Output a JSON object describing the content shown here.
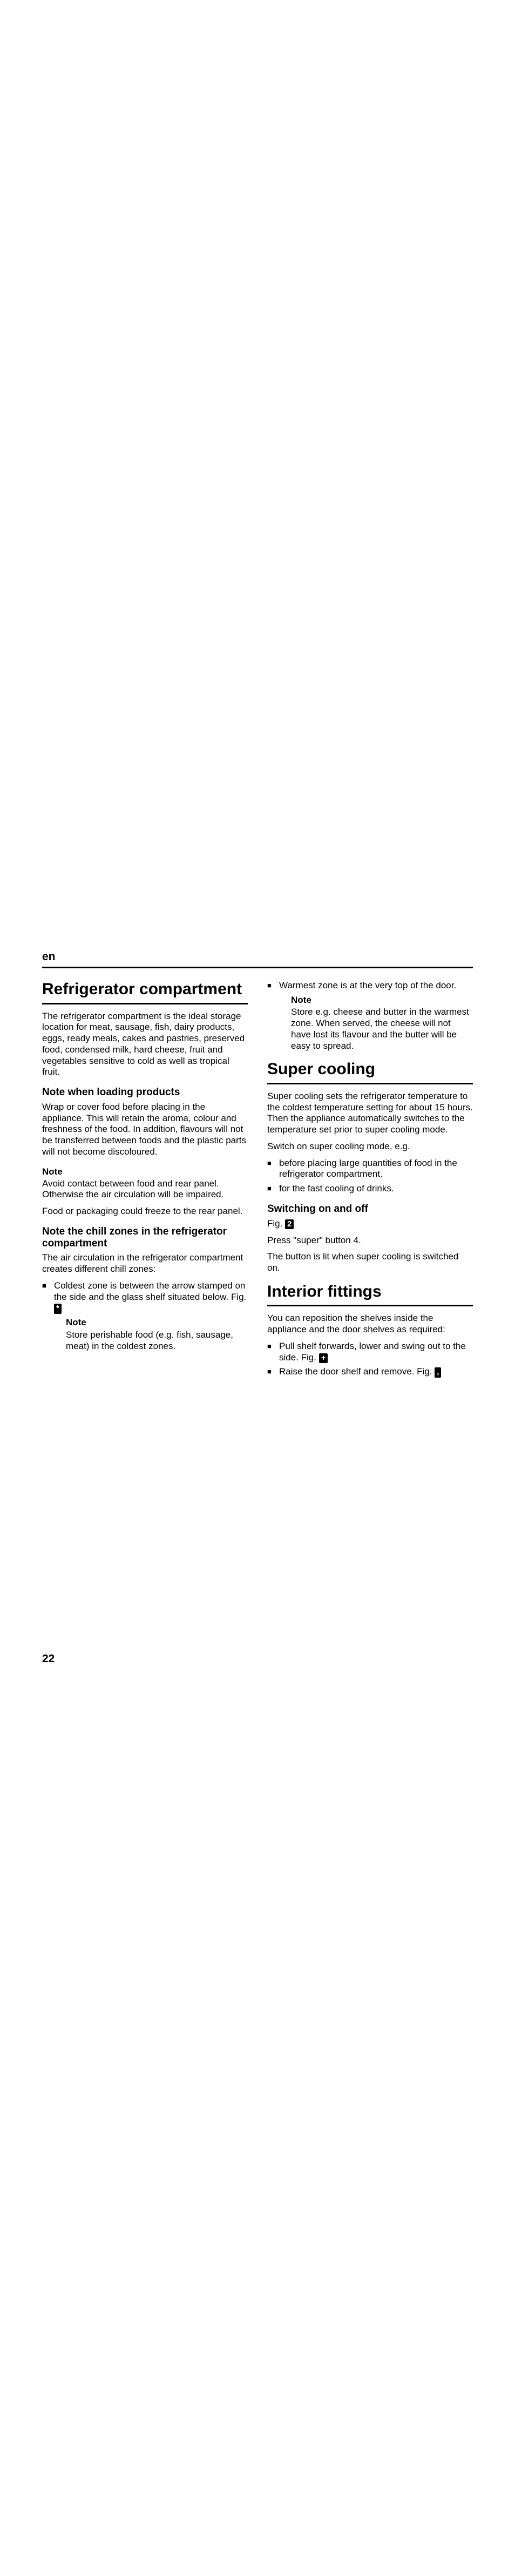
{
  "lang": "en",
  "pageNum": "22",
  "left": {
    "title": "Refrigerator compartment",
    "intro": "The refrigerator compartment is the ideal storage location for meat, sausage, fish, dairy products, eggs, ready meals, cakes and pastries, preserved food, condensed milk, hard cheese, fruit and vegetables sensitive to cold as well as tropical fruit.",
    "h_loading": "Note when loading products",
    "loading_p": "Wrap or cover food before placing in the appliance. This will retain the aroma, colour and freshness of the food. In addition, flavours will not be transferred between foods and the plastic parts will not become discoloured.",
    "note1": "Note",
    "note1_p": "Avoid contact between food and rear panel. Otherwise the air circulation will be impaired.",
    "note1_p2": "Food or packaging could freeze to the rear panel.",
    "h_chill": "Note the chill zones in the refrigerator compartment",
    "chill_p": "The air circulation in the refrigerator compartment creates different chill zones:",
    "chill_b1_a": "Coldest zone is between the arrow stamped on the side and the glass shelf situated below. Fig. ",
    "chill_b1_fig": "*",
    "note2": "Note",
    "note2_p": "Store perishable food (e.g. fish, sausage, meat) in the coldest zones."
  },
  "right": {
    "warm_b_a": "Warmest zone is at the very top of the door.",
    "warm_note": "Note",
    "warm_note_p": "Store e.g. cheese and butter in the warmest zone. When served, the cheese will not have lost its flavour and the butter will be easy to spread.",
    "title_super": "Super cooling",
    "super_p1": "Super cooling sets the refrigerator temperature to the coldest temperature setting for about 15 hours. Then the appliance automatically switches to the temperature set prior to super cooling mode.",
    "super_p2": "Switch on super cooling mode, e.g.",
    "super_b1": "before placing large quantities of food in the refrigerator compartment.",
    "super_b2": "for the fast cooling of drinks.",
    "h_switch": "Switching on and off",
    "switch_p_a": "Fig. ",
    "switch_fig": "2",
    "switch_p2": "Press \"super\" button 4.",
    "switch_p3": "The button is lit when super cooling is switched on.",
    "title_fit": "Interior fittings",
    "fit_p": "You can reposition the shelves inside the appliance and the door shelves as required:",
    "fit_b1_a": "Pull shelf forwards, lower and swing out to the side. Fig. ",
    "fit_b1_fig": "+",
    "fit_b2_a": "Raise the door shelf and remove. Fig. ",
    "fit_b2_fig": ","
  }
}
